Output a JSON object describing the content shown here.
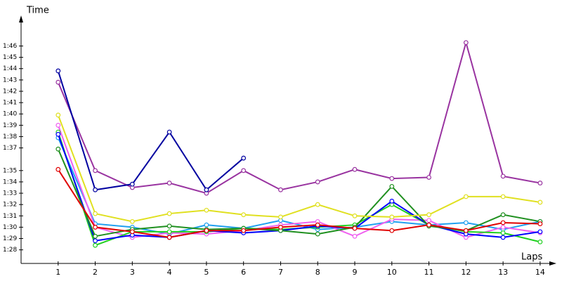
{
  "chart_data": {
    "type": "line",
    "y_label": "Time",
    "x_label": "Laps",
    "x": [
      1,
      2,
      3,
      4,
      5,
      6,
      7,
      8,
      9,
      10,
      11,
      12,
      13,
      14
    ],
    "xlim": [
      0,
      14.4
    ],
    "xticks": [
      1,
      2,
      3,
      4,
      5,
      6,
      7,
      8,
      9,
      10,
      11,
      12,
      13,
      14
    ],
    "ylim": [
      86.8,
      108.2
    ],
    "yticks": [
      {
        "value": 88,
        "label": "1:28"
      },
      {
        "value": 89,
        "label": "1:29"
      },
      {
        "value": 90,
        "label": "1:30"
      },
      {
        "value": 91,
        "label": "1:31"
      },
      {
        "value": 92,
        "label": "1:32"
      },
      {
        "value": 93,
        "label": "1:33"
      },
      {
        "value": 94,
        "label": "1:34"
      },
      {
        "value": 95,
        "label": "1:35"
      },
      {
        "value": 97,
        "label": "1:37"
      },
      {
        "value": 98,
        "label": "1:38"
      },
      {
        "value": 99,
        "label": "1:39"
      },
      {
        "value": 100,
        "label": "1:40"
      },
      {
        "value": 101,
        "label": "1:41"
      },
      {
        "value": 102,
        "label": "1:42"
      },
      {
        "value": 103,
        "label": "1:43"
      },
      {
        "value": 104,
        "label": "1:44"
      },
      {
        "value": 105,
        "label": "1:45"
      },
      {
        "value": 106,
        "label": "1:46"
      }
    ],
    "series": [
      {
        "color": "#20a0f0",
        "values": [
          97.9,
          90.3,
          90.0,
          89.4,
          90.2,
          89.9,
          90.6,
          89.8,
          90.0,
          90.5,
          90.2,
          90.4,
          89.8,
          90.5
        ]
      },
      {
        "color": "#f060f0",
        "values": [
          99.0,
          90.0,
          89.1,
          89.5,
          89.4,
          89.7,
          90.2,
          90.5,
          89.2,
          90.7,
          90.6,
          89.1,
          90.0,
          89.5
        ]
      },
      {
        "color": "#20d020",
        "values": [
          98.4,
          88.4,
          89.6,
          89.6,
          89.6,
          89.9,
          89.8,
          90.0,
          90.2,
          92.0,
          90.2,
          89.6,
          89.5,
          88.7
        ]
      },
      {
        "color": "#0000ff",
        "values": [
          98.2,
          88.8,
          89.3,
          89.1,
          89.7,
          89.5,
          89.7,
          90.1,
          89.9,
          92.3,
          90.2,
          89.4,
          89.1,
          89.6
        ]
      },
      {
        "color": "#209020",
        "values": [
          96.9,
          89.2,
          89.8,
          90.1,
          89.8,
          89.9,
          89.7,
          89.4,
          90.0,
          93.6,
          90.1,
          89.7,
          91.1,
          90.5
        ]
      },
      {
        "color": "#e00000",
        "values": [
          95.1,
          90.0,
          89.6,
          89.1,
          89.7,
          89.7,
          90.0,
          90.2,
          89.9,
          89.7,
          90.2,
          89.7,
          90.4,
          90.3
        ]
      },
      {
        "color": "#e0e020",
        "values": [
          99.9,
          91.2,
          90.5,
          91.2,
          91.5,
          91.1,
          90.9,
          92.0,
          91.0,
          90.9,
          91.1,
          92.7,
          92.7,
          92.2
        ]
      },
      {
        "color": "#9933a0",
        "values": [
          102.8,
          95.0,
          93.5,
          93.9,
          93.0,
          95.0,
          93.3,
          94.0,
          95.1,
          94.3,
          94.4,
          106.3,
          94.5,
          93.9
        ]
      },
      {
        "color": "#0000a0",
        "values": [
          103.8,
          93.3,
          93.8,
          98.4,
          93.3,
          96.1,
          null,
          null,
          null,
          null,
          null,
          null,
          null,
          null
        ]
      }
    ]
  }
}
